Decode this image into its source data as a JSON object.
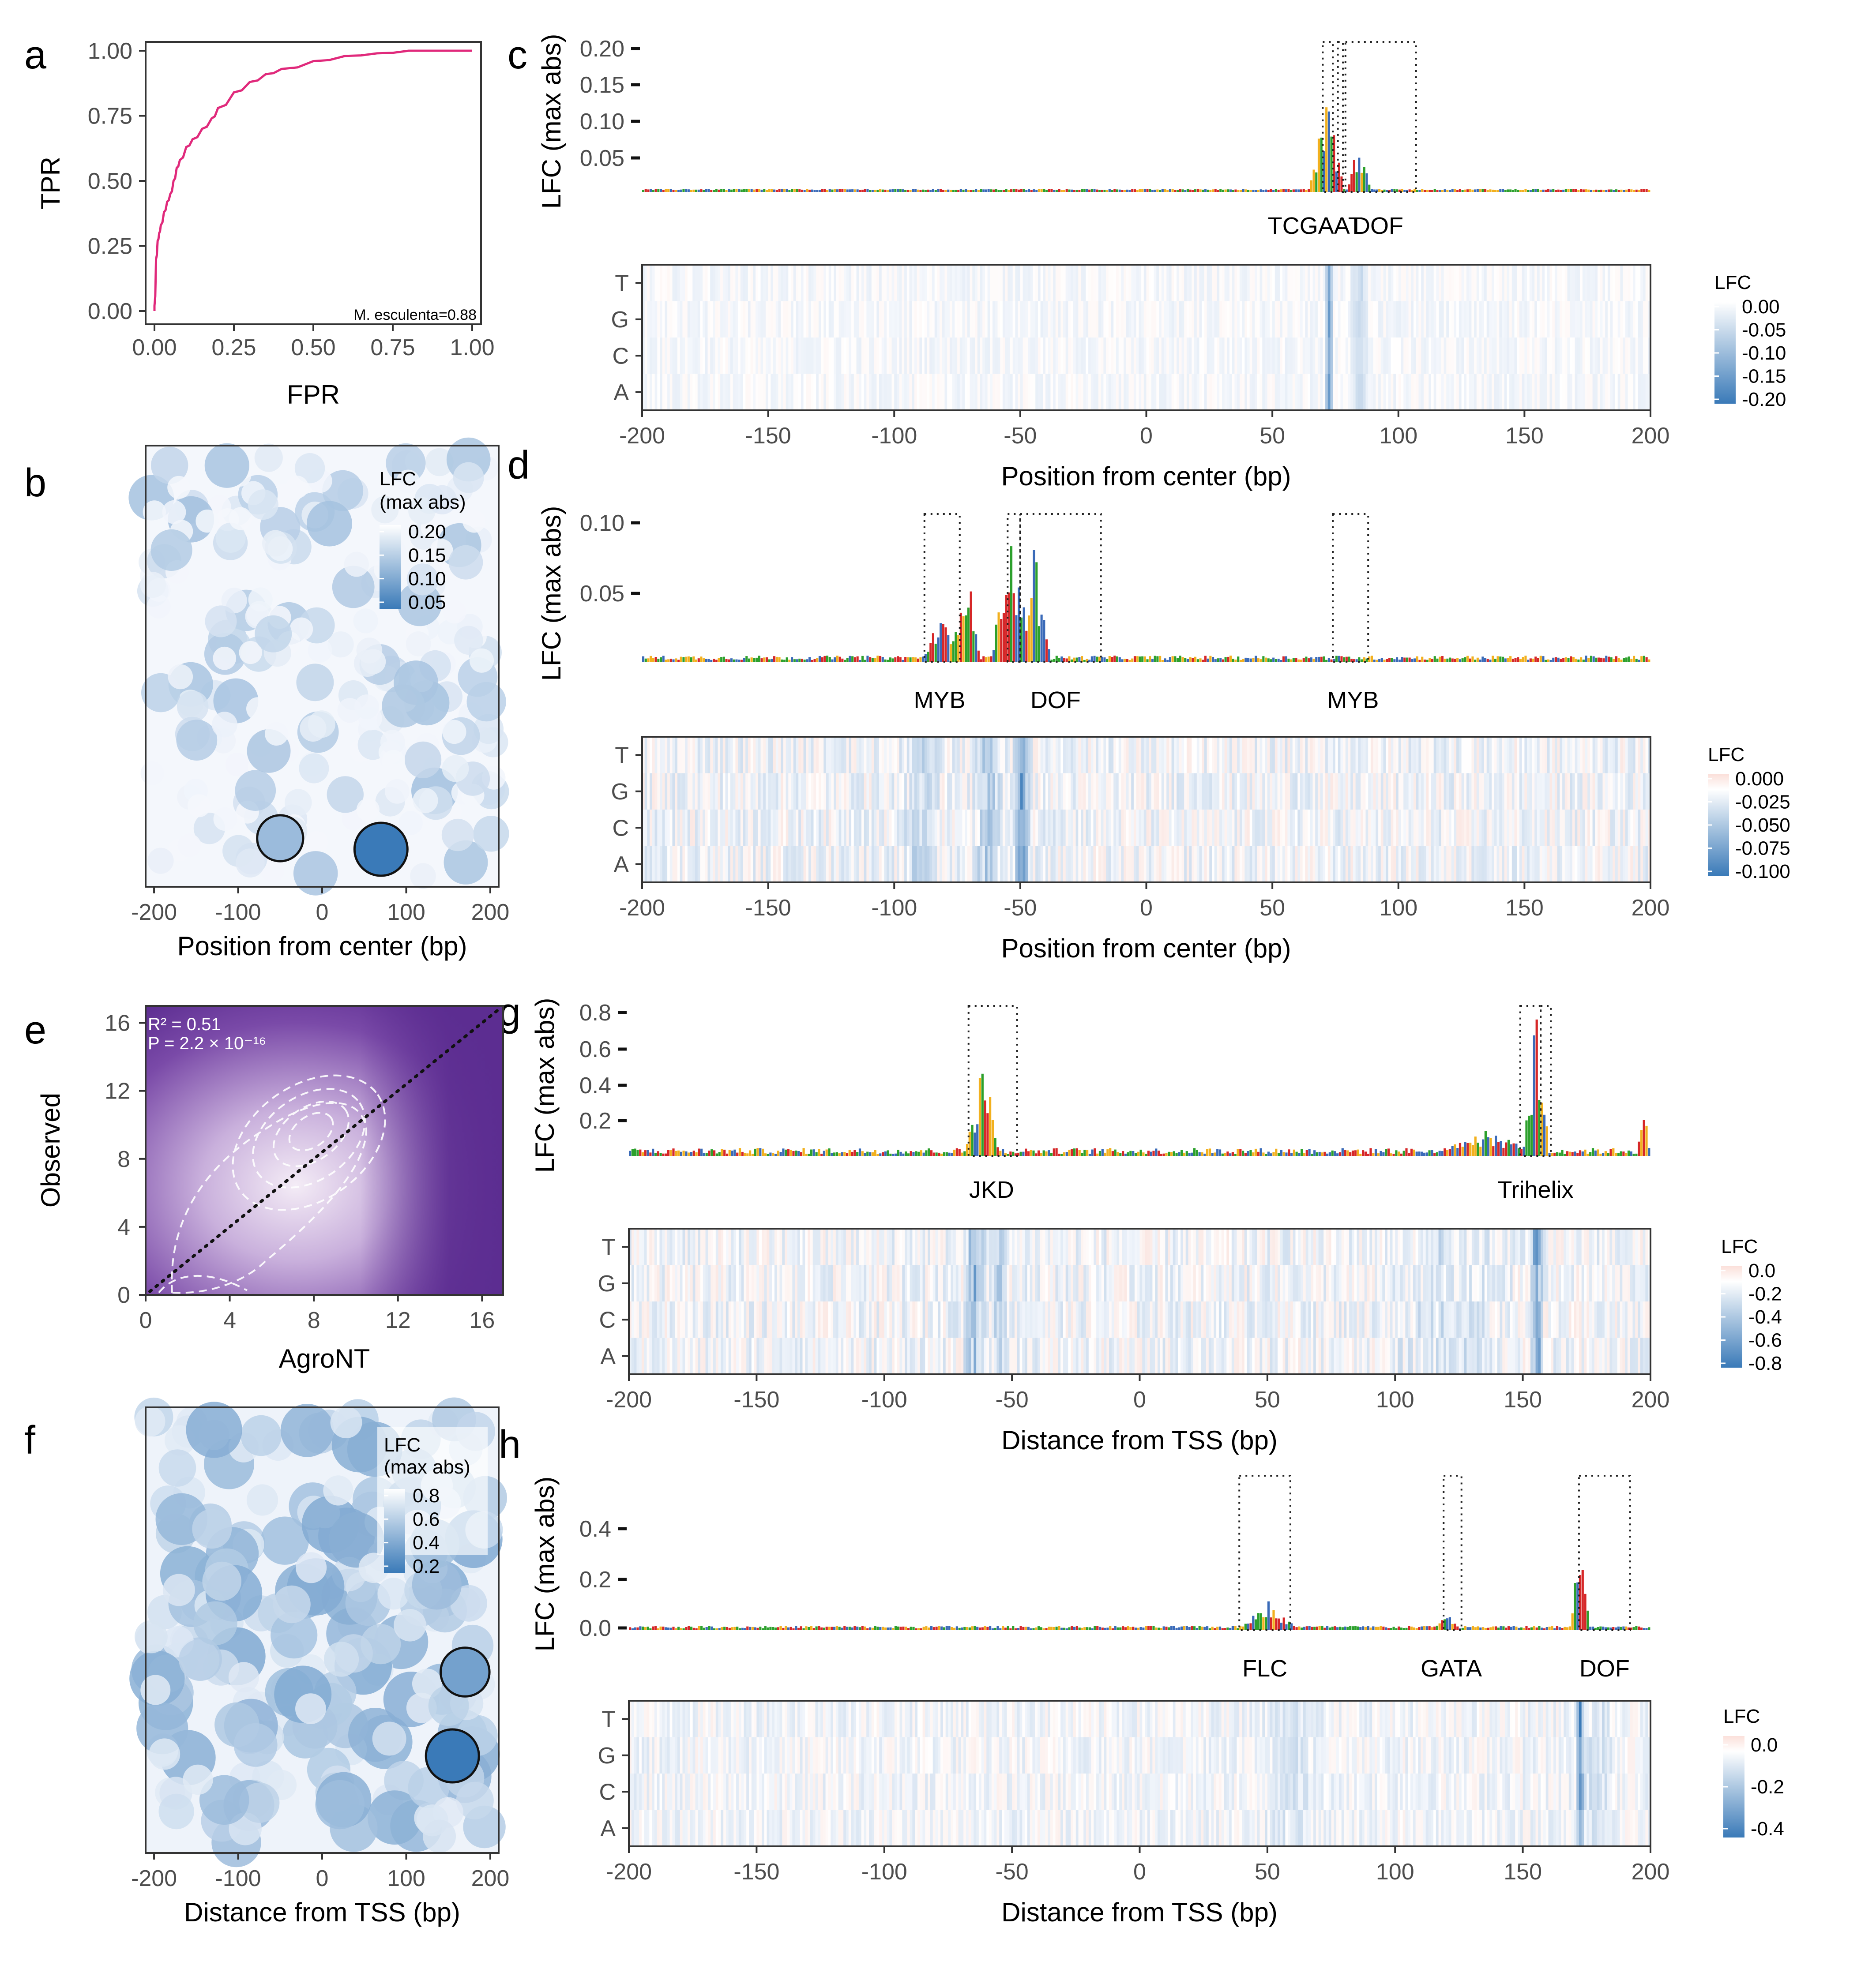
{
  "panel_letters": [
    "a",
    "b",
    "c",
    "d",
    "e",
    "f",
    "g",
    "h"
  ],
  "colors": {
    "roc": "#e0297b",
    "lfc_dark": "#3a7ab8",
    "lfc_light": "#eef3fa",
    "pos_red": "#f6cfc6",
    "density_dark": "#5c2d91",
    "density_light": "#f1e9f5",
    "A": "#2ca02c",
    "C": "#3a6ab8",
    "G": "#f2b01e",
    "T": "#d62728"
  },
  "chart_data": [
    {
      "id": "a",
      "type": "line",
      "xlabel": "FPR",
      "ylabel": "TPR",
      "xlim": [
        0,
        1
      ],
      "ylim": [
        0,
        1
      ],
      "xticks": [
        "0.00",
        "0.25",
        "0.50",
        "0.75",
        "1.00"
      ],
      "yticks": [
        "0.00",
        "0.25",
        "0.50",
        "0.75",
        "1.00"
      ],
      "annotation": "M. esculenta=0.88",
      "x": [
        0,
        0,
        0.005,
        0.01,
        0.015,
        0.02,
        0.03,
        0.04,
        0.05,
        0.06,
        0.07,
        0.08,
        0.1,
        0.12,
        0.15,
        0.18,
        0.2,
        0.25,
        0.3,
        0.35,
        0.4,
        0.5,
        0.6,
        0.7,
        0.8,
        0.9,
        1.0
      ],
      "y": [
        0,
        0.02,
        0.2,
        0.27,
        0.3,
        0.33,
        0.38,
        0.42,
        0.45,
        0.5,
        0.55,
        0.58,
        0.63,
        0.66,
        0.7,
        0.74,
        0.78,
        0.84,
        0.88,
        0.91,
        0.93,
        0.96,
        0.98,
        0.99,
        1.0,
        1.0,
        1.0
      ]
    },
    {
      "id": "b",
      "type": "scatter",
      "xlabel": "Position from center (bp)",
      "ylabel": "",
      "xlim": [
        -210,
        210
      ],
      "xticks": [
        "-200",
        "-100",
        "0",
        "100",
        "200"
      ],
      "legend_title": "LFC\n(max abs)",
      "legend_labels": [
        "0.20",
        "0.15",
        "0.10",
        "0.05"
      ],
      "highlighted": [
        {
          "x": 70,
          "lfc": 0.21
        },
        {
          "x": -50,
          "lfc": 0.1
        }
      ]
    },
    {
      "id": "c",
      "type": "heatmap",
      "ylabel": "LFC (max abs)",
      "yticks": [
        "0.20",
        "0.15",
        "0.10",
        "0.05"
      ],
      "xlabel": "Position from center (bp)",
      "xticks": [
        "-200",
        "-150",
        "-100",
        "-50",
        "0",
        "50",
        "100",
        "150",
        "200"
      ],
      "rows": [
        "T",
        "G",
        "C",
        "A"
      ],
      "motifs": [
        "TCGAAT",
        "DOF"
      ],
      "legend_title": "LFC",
      "legend_labels": [
        "0.00",
        "-0.05",
        "-0.10",
        "-0.15",
        "-0.20"
      ]
    },
    {
      "id": "d",
      "type": "heatmap",
      "ylabel": "LFC (max abs)",
      "yticks": [
        "0.10",
        "0.05"
      ],
      "xlabel": "Position from center (bp)",
      "xticks": [
        "-200",
        "-150",
        "-100",
        "-50",
        "0",
        "50",
        "100",
        "150",
        "200"
      ],
      "rows": [
        "T",
        "G",
        "C",
        "A"
      ],
      "motifs": [
        "MYB",
        "DOF",
        "MYB"
      ],
      "legend_title": "LFC",
      "legend_labels": [
        "0.000",
        "-0.025",
        "-0.050",
        "-0.075",
        "-0.100"
      ]
    },
    {
      "id": "e",
      "type": "heatmap",
      "xlabel": "AgroNT",
      "ylabel": "Observed",
      "xlim": [
        0,
        17
      ],
      "ylim": [
        0,
        17
      ],
      "xticks": [
        "0",
        "4",
        "8",
        "12",
        "16"
      ],
      "yticks": [
        "0",
        "4",
        "8",
        "12",
        "16"
      ],
      "r2_label": "R² = 0.51",
      "p_label": "P = 2.2 × 10⁻¹⁶"
    },
    {
      "id": "f",
      "type": "scatter",
      "xlabel": "Distance from TSS (bp)",
      "ylabel": "",
      "xlim": [
        -210,
        210
      ],
      "xticks": [
        "-200",
        "-100",
        "0",
        "100",
        "200"
      ],
      "legend_title": "LFC\n(max abs)",
      "legend_labels": [
        "0.8",
        "0.6",
        "0.4",
        "0.2"
      ],
      "highlighted": [
        {
          "x": 170,
          "lfc": 0.55
        },
        {
          "x": 155,
          "lfc": 0.8
        }
      ]
    },
    {
      "id": "g",
      "type": "heatmap",
      "ylabel": "LFC (max abs)",
      "yticks": [
        "0.8",
        "0.6",
        "0.4",
        "0.2"
      ],
      "xlabel": "Distance from TSS (bp)",
      "xticks": [
        "-200",
        "-150",
        "-100",
        "-50",
        "0",
        "50",
        "100",
        "150",
        "200"
      ],
      "rows": [
        "T",
        "G",
        "C",
        "A"
      ],
      "motifs": [
        "JKD",
        "Trihelix"
      ],
      "legend_title": "LFC",
      "legend_labels": [
        "0.0",
        "-0.2",
        "-0.4",
        "-0.6",
        "-0.8"
      ]
    },
    {
      "id": "h",
      "type": "heatmap",
      "ylabel": "LFC (max abs)",
      "yticks": [
        "0.4",
        "0.2",
        "0.0"
      ],
      "xlabel": "Distance from TSS (bp)",
      "xticks": [
        "-200",
        "-150",
        "-100",
        "-50",
        "0",
        "50",
        "100",
        "150",
        "200"
      ],
      "rows": [
        "T",
        "G",
        "C",
        "A"
      ],
      "motifs": [
        "FLC",
        "GATA",
        "DOF"
      ],
      "legend_title": "LFC",
      "legend_labels": [
        "0.0",
        "-0.2",
        "-0.4"
      ]
    }
  ]
}
